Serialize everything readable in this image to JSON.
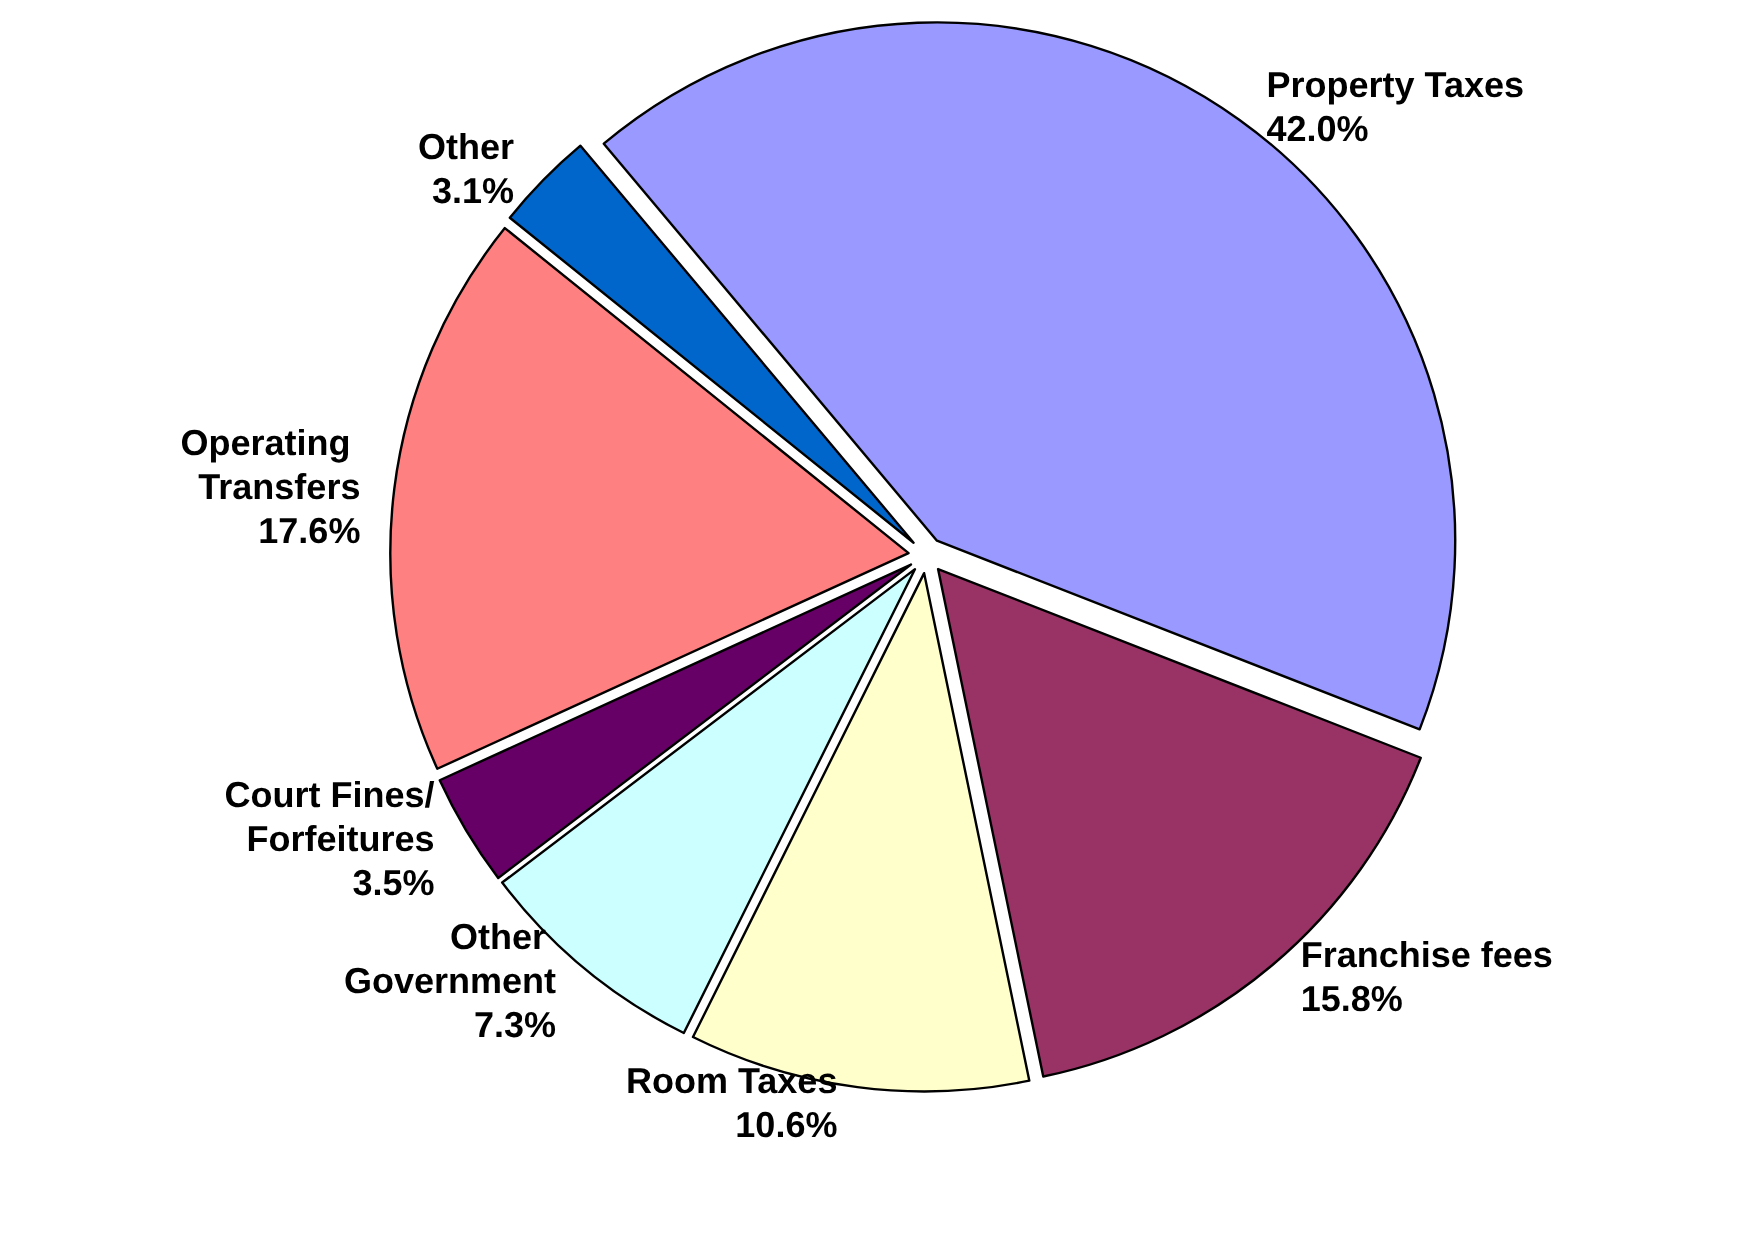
{
  "chart_data": {
    "type": "pie",
    "categories": [
      "Property Taxes",
      "Franchise fees",
      "Room Taxes",
      "Other Government",
      "Court Fines/Forfeitures",
      "Operating Transfers",
      "Other"
    ],
    "values": [
      42.0,
      15.8,
      10.6,
      7.3,
      3.5,
      17.6,
      3.1
    ],
    "value_labels": [
      "42.0%",
      "15.8%",
      "10.6%",
      "7.3%",
      "3.5%",
      "17.6%",
      "3.1%"
    ],
    "colors": [
      "#9999ff",
      "#993366",
      "#ffffcc",
      "#ccffff",
      "#660066",
      "#ff8080",
      "#0066cc"
    ],
    "legend": false
  }
}
